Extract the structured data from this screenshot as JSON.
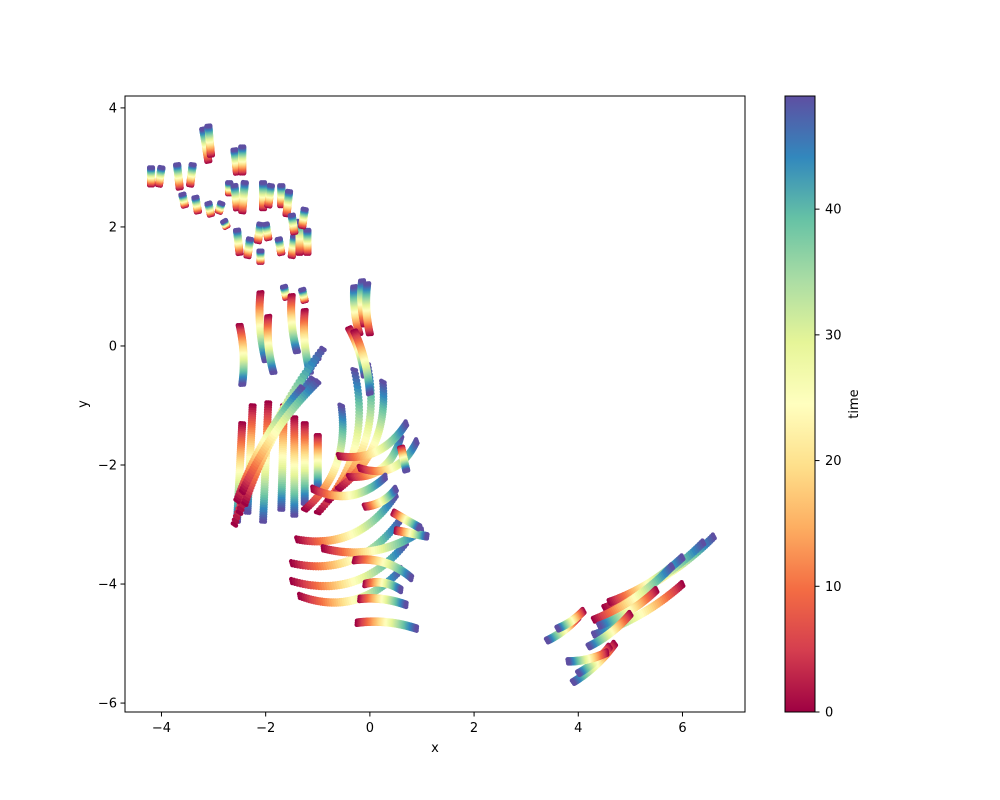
{
  "chart_data": {
    "type": "scatter",
    "title": "",
    "xlabel": "x",
    "ylabel": "y",
    "xlim": [
      -4.7,
      7.2
    ],
    "ylim": [
      -6.15,
      4.2
    ],
    "x_ticks": [
      -4,
      -2,
      0,
      2,
      4,
      6
    ],
    "x_tick_labels": [
      "−4",
      "−2",
      "0",
      "2",
      "4",
      "6"
    ],
    "y_ticks": [
      -6,
      -4,
      -2,
      0,
      2,
      4
    ],
    "y_tick_labels": [
      "−6",
      "−4",
      "−2",
      "0",
      "2",
      "4"
    ],
    "grid": false,
    "legend": "none",
    "colormap": "Spectral",
    "colormap_stops": [
      "#9e0142",
      "#d53e4f",
      "#f46d43",
      "#fdae61",
      "#fee08b",
      "#ffffbf",
      "#e6f598",
      "#abdda4",
      "#66c2a5",
      "#3288bd",
      "#5e4fa2"
    ],
    "color_by": "time",
    "colorbar": {
      "label": "time",
      "range": [
        0,
        49
      ],
      "ticks": [
        0,
        10,
        20,
        30,
        40
      ],
      "tick_labels": [
        "0",
        "10",
        "20",
        "30",
        "40"
      ]
    },
    "t_end": 49,
    "trajectories": [
      {
        "start": [
          -4.2,
          2.7
        ],
        "end": [
          -4.2,
          3.0
        ],
        "curve": 0.0
      },
      {
        "start": [
          -4.05,
          2.7
        ],
        "end": [
          -4.0,
          3.0
        ],
        "curve": 0.0
      },
      {
        "start": [
          -3.65,
          2.65
        ],
        "end": [
          -3.7,
          3.05
        ],
        "curve": 0.0
      },
      {
        "start": [
          -3.45,
          2.7
        ],
        "end": [
          -3.4,
          3.05
        ],
        "curve": 0.0
      },
      {
        "start": [
          -3.55,
          2.35
        ],
        "end": [
          -3.6,
          2.55
        ],
        "curve": 0.0
      },
      {
        "start": [
          -3.3,
          2.25
        ],
        "end": [
          -3.35,
          2.5
        ],
        "curve": 0.0
      },
      {
        "start": [
          -3.1,
          3.1
        ],
        "end": [
          -3.2,
          3.65
        ],
        "curve": 0.0
      },
      {
        "start": [
          -3.05,
          3.2
        ],
        "end": [
          -3.1,
          3.7
        ],
        "curve": 0.0
      },
      {
        "start": [
          -3.05,
          2.2
        ],
        "end": [
          -3.1,
          2.4
        ],
        "curve": 0.0
      },
      {
        "start": [
          -2.9,
          2.25
        ],
        "end": [
          -2.85,
          2.4
        ],
        "curve": 0.0
      },
      {
        "start": [
          -2.7,
          2.55
        ],
        "end": [
          -2.7,
          2.75
        ],
        "curve": 0.0
      },
      {
        "start": [
          -2.55,
          2.3
        ],
        "end": [
          -2.6,
          2.7
        ],
        "curve": 0.0
      },
      {
        "start": [
          -2.45,
          2.25
        ],
        "end": [
          -2.4,
          2.75
        ],
        "curve": 0.0
      },
      {
        "start": [
          -2.55,
          2.9
        ],
        "end": [
          -2.6,
          3.3
        ],
        "curve": 0.0
      },
      {
        "start": [
          -2.45,
          2.9
        ],
        "end": [
          -2.45,
          3.35
        ],
        "curve": 0.0
      },
      {
        "start": [
          -2.75,
          2.0
        ],
        "end": [
          -2.8,
          2.1
        ],
        "curve": 0.0
      },
      {
        "start": [
          -2.5,
          1.55
        ],
        "end": [
          -2.55,
          1.95
        ],
        "curve": 0.0
      },
      {
        "start": [
          -2.35,
          1.5
        ],
        "end": [
          -2.3,
          1.8
        ],
        "curve": 0.0
      },
      {
        "start": [
          -2.1,
          1.4
        ],
        "end": [
          -2.1,
          1.6
        ],
        "curve": 0.0
      },
      {
        "start": [
          -2.15,
          1.75
        ],
        "end": [
          -2.1,
          2.05
        ],
        "curve": 0.0
      },
      {
        "start": [
          -1.95,
          1.8
        ],
        "end": [
          -2.0,
          2.05
        ],
        "curve": 0.0
      },
      {
        "start": [
          -2.05,
          2.3
        ],
        "end": [
          -2.05,
          2.75
        ],
        "curve": 0.0
      },
      {
        "start": [
          -1.95,
          2.35
        ],
        "end": [
          -1.9,
          2.7
        ],
        "curve": 0.0
      },
      {
        "start": [
          -1.7,
          2.35
        ],
        "end": [
          -1.7,
          2.7
        ],
        "curve": 0.0
      },
      {
        "start": [
          -1.6,
          2.2
        ],
        "end": [
          -1.55,
          2.6
        ],
        "curve": 0.0
      },
      {
        "start": [
          -1.7,
          1.55
        ],
        "end": [
          -1.75,
          1.8
        ],
        "curve": 0.0
      },
      {
        "start": [
          -1.5,
          1.5
        ],
        "end": [
          -1.45,
          1.85
        ],
        "curve": 0.0
      },
      {
        "start": [
          -1.35,
          1.55
        ],
        "end": [
          -1.35,
          2.1
        ],
        "curve": 0.0
      },
      {
        "start": [
          -1.2,
          1.55
        ],
        "end": [
          -1.2,
          1.95
        ],
        "curve": 0.0
      },
      {
        "start": [
          -1.45,
          1.9
        ],
        "end": [
          -1.5,
          2.2
        ],
        "curve": 0.0
      },
      {
        "start": [
          -1.3,
          2.0
        ],
        "end": [
          -1.25,
          2.3
        ],
        "curve": 0.0
      },
      {
        "start": [
          -0.2,
          0.2
        ],
        "end": [
          -0.3,
          1.0
        ],
        "curve": 0.05
      },
      {
        "start": [
          -0.1,
          0.35
        ],
        "end": [
          -0.15,
          1.1
        ],
        "curve": 0.05
      },
      {
        "start": [
          0.0,
          0.2
        ],
        "end": [
          -0.05,
          1.05
        ],
        "curve": 0.05
      },
      {
        "start": [
          -1.25,
          0.75
        ],
        "end": [
          -1.3,
          0.95
        ],
        "curve": 0.0
      },
      {
        "start": [
          -1.6,
          0.8
        ],
        "end": [
          -1.65,
          1.0
        ],
        "curve": 0.0
      },
      {
        "start": [
          -2.5,
          0.35
        ],
        "end": [
          -2.45,
          -0.65
        ],
        "curve": 0.05
      },
      {
        "start": [
          -2.1,
          0.9
        ],
        "end": [
          -2.0,
          -0.25
        ],
        "curve": -0.05
      },
      {
        "start": [
          -1.95,
          0.5
        ],
        "end": [
          -1.85,
          -0.45
        ],
        "curve": -0.05
      },
      {
        "start": [
          -1.5,
          0.85
        ],
        "end": [
          -1.4,
          -0.1
        ],
        "curve": -0.05
      },
      {
        "start": [
          -1.25,
          0.6
        ],
        "end": [
          -1.15,
          -0.45
        ],
        "curve": -0.05
      },
      {
        "start": [
          -2.45,
          -1.3
        ],
        "end": [
          -2.55,
          -2.95
        ],
        "curve": 0.0
      },
      {
        "start": [
          -2.25,
          -1.0
        ],
        "end": [
          -2.35,
          -2.8
        ],
        "curve": 0.0
      },
      {
        "start": [
          -1.95,
          -0.95
        ],
        "end": [
          -2.05,
          -2.95
        ],
        "curve": 0.0
      },
      {
        "start": [
          -1.65,
          -1.0
        ],
        "end": [
          -1.7,
          -2.75
        ],
        "curve": 0.0
      },
      {
        "start": [
          -1.45,
          -1.2
        ],
        "end": [
          -1.45,
          -2.85
        ],
        "curve": 0.0
      },
      {
        "start": [
          -1.25,
          -1.3
        ],
        "end": [
          -1.25,
          -2.65
        ],
        "curve": 0.0
      },
      {
        "start": [
          -1.0,
          -1.5
        ],
        "end": [
          -1.0,
          -2.4
        ],
        "curve": 0.0
      },
      {
        "start": [
          -1.25,
          -2.75
        ],
        "end": [
          -0.55,
          -1.0
        ],
        "curve": -0.15
      },
      {
        "start": [
          -1.0,
          -2.8
        ],
        "end": [
          -0.3,
          -0.4
        ],
        "curve": -0.15
      },
      {
        "start": [
          -0.8,
          -2.6
        ],
        "end": [
          -0.05,
          -0.3
        ],
        "curve": -0.15
      },
      {
        "start": [
          -0.6,
          -2.4
        ],
        "end": [
          0.25,
          -0.6
        ],
        "curve": -0.15
      },
      {
        "start": [
          -0.4,
          -2.2
        ],
        "end": [
          0.6,
          -1.5
        ],
        "curve": -0.2
      },
      {
        "start": [
          -0.2,
          -2.05
        ],
        "end": [
          0.9,
          -1.6
        ],
        "curve": -0.2
      },
      {
        "start": [
          -0.6,
          -1.85
        ],
        "end": [
          0.7,
          -1.3
        ],
        "curve": -0.15
      },
      {
        "start": [
          -1.4,
          -3.25
        ],
        "end": [
          0.5,
          -2.5
        ],
        "curve": -0.15
      },
      {
        "start": [
          -1.5,
          -3.65
        ],
        "end": [
          0.6,
          -2.9
        ],
        "curve": -0.15
      },
      {
        "start": [
          -1.5,
          -3.95
        ],
        "end": [
          0.7,
          -3.3
        ],
        "curve": -0.15
      },
      {
        "start": [
          -1.35,
          -4.2
        ],
        "end": [
          0.6,
          -3.75
        ],
        "curve": -0.15
      },
      {
        "start": [
          -1.1,
          -2.4
        ],
        "end": [
          0.3,
          -2.2
        ],
        "curve": -0.15
      },
      {
        "start": [
          -0.9,
          -3.4
        ],
        "end": [
          1.0,
          -3.1
        ],
        "curve": -0.1
      },
      {
        "start": [
          -0.3,
          -3.6
        ],
        "end": [
          0.8,
          -3.9
        ],
        "curve": 0.1
      },
      {
        "start": [
          -0.1,
          -4.0
        ],
        "end": [
          0.6,
          -4.1
        ],
        "curve": 0.1
      },
      {
        "start": [
          -0.2,
          -4.25
        ],
        "end": [
          0.7,
          -4.35
        ],
        "curve": 0.05
      },
      {
        "start": [
          -0.25,
          -4.65
        ],
        "end": [
          0.9,
          -4.75
        ],
        "curve": 0.05
      },
      {
        "start": [
          -0.1,
          -2.7
        ],
        "end": [
          0.5,
          -2.4
        ],
        "curve": -0.1
      },
      {
        "start": [
          -2.6,
          -3.0
        ],
        "end": [
          -1.0,
          -0.2
        ],
        "curve": 0.05
      },
      {
        "start": [
          -2.5,
          -2.8
        ],
        "end": [
          -0.9,
          -0.05
        ],
        "curve": 0.05
      },
      {
        "start": [
          -2.4,
          -2.65
        ],
        "end": [
          -1.1,
          -0.55
        ],
        "curve": 0.05
      },
      {
        "start": [
          -2.55,
          -2.6
        ],
        "end": [
          -1.3,
          -0.7
        ],
        "curve": 0.05
      },
      {
        "start": [
          -2.45,
          -2.45
        ],
        "end": [
          -1.0,
          -0.6
        ],
        "curve": 0.05
      },
      {
        "start": [
          -0.4,
          0.3
        ],
        "end": [
          -0.1,
          -0.5
        ],
        "curve": 0.05
      },
      {
        "start": [
          -0.3,
          0.25
        ],
        "end": [
          0.0,
          -0.8
        ],
        "curve": 0.05
      },
      {
        "start": [
          0.5,
          -3.1
        ],
        "end": [
          1.1,
          -3.2
        ],
        "curve": 0.0
      },
      {
        "start": [
          0.45,
          -2.8
        ],
        "end": [
          0.95,
          -3.05
        ],
        "curve": 0.0
      },
      {
        "start": [
          0.6,
          -1.7
        ],
        "end": [
          0.7,
          -2.1
        ],
        "curve": 0.0
      },
      {
        "start": [
          4.8,
          -4.25
        ],
        "end": [
          6.6,
          -3.2
        ],
        "curve": -0.05
      },
      {
        "start": [
          4.5,
          -4.4
        ],
        "end": [
          6.4,
          -3.3
        ],
        "curve": -0.05
      },
      {
        "start": [
          4.6,
          -4.3
        ],
        "end": [
          6.0,
          -3.55
        ],
        "curve": -0.05
      },
      {
        "start": [
          4.3,
          -4.6
        ],
        "end": [
          5.8,
          -3.7
        ],
        "curve": -0.05
      },
      {
        "start": [
          6.0,
          -4.0
        ],
        "end": [
          4.3,
          -4.85
        ],
        "curve": 0.05
      },
      {
        "start": [
          5.5,
          -4.1
        ],
        "end": [
          4.4,
          -4.7
        ],
        "curve": 0.05
      },
      {
        "start": [
          4.7,
          -5.0
        ],
        "end": [
          3.9,
          -5.65
        ],
        "curve": 0.05
      },
      {
        "start": [
          4.6,
          -5.05
        ],
        "end": [
          4.0,
          -5.5
        ],
        "curve": 0.05
      },
      {
        "start": [
          4.55,
          -5.15
        ],
        "end": [
          3.8,
          -5.3
        ],
        "curve": 0.05
      },
      {
        "start": [
          4.0,
          -4.55
        ],
        "end": [
          3.4,
          -4.95
        ],
        "curve": 0.05
      },
      {
        "start": [
          4.1,
          -4.45
        ],
        "end": [
          3.6,
          -4.75
        ],
        "curve": 0.05
      },
      {
        "start": [
          5.0,
          -4.5
        ],
        "end": [
          4.2,
          -5.05
        ],
        "curve": 0.05
      }
    ]
  }
}
